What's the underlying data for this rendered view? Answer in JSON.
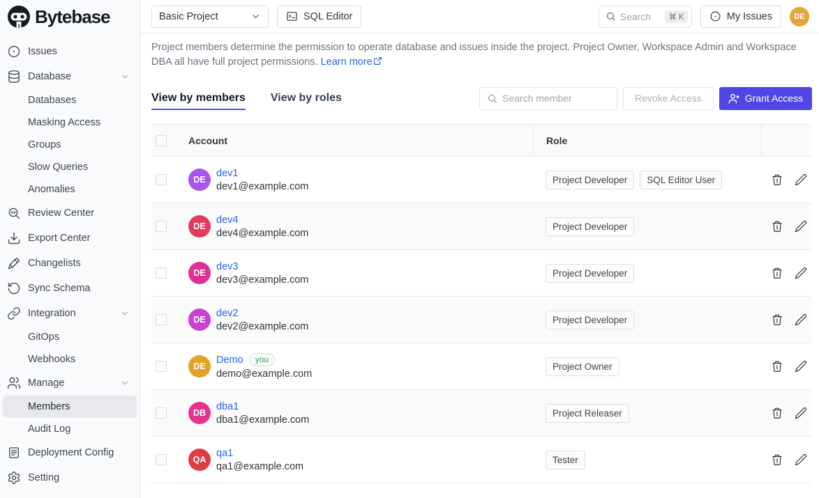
{
  "colors": {
    "accent": "#4F46E5",
    "link": "#2563EB",
    "topbar_avatar": "#E6A53C"
  },
  "sidebar": {
    "brand": "Bytebase",
    "items": [
      {
        "label": "Issues",
        "icon": "issues-icon",
        "type": "item"
      },
      {
        "label": "Database",
        "icon": "database-icon",
        "type": "item",
        "chevron": true
      },
      {
        "label": "Databases",
        "type": "subitem"
      },
      {
        "label": "Masking Access",
        "type": "subitem"
      },
      {
        "label": "Groups",
        "type": "subitem"
      },
      {
        "label": "Slow Queries",
        "type": "subitem"
      },
      {
        "label": "Anomalies",
        "type": "subitem"
      },
      {
        "label": "Review Center",
        "icon": "review-center-icon",
        "type": "item"
      },
      {
        "label": "Export Center",
        "icon": "export-center-icon",
        "type": "item"
      },
      {
        "label": "Changelists",
        "icon": "changelists-icon",
        "type": "item"
      },
      {
        "label": "Sync Schema",
        "icon": "sync-schema-icon",
        "type": "item"
      },
      {
        "label": "Integration",
        "icon": "integration-icon",
        "type": "item",
        "chevron": true
      },
      {
        "label": "GitOps",
        "type": "subitem"
      },
      {
        "label": "Webhooks",
        "type": "subitem"
      },
      {
        "label": "Manage",
        "icon": "manage-icon",
        "type": "item",
        "chevron": true
      },
      {
        "label": "Members",
        "type": "subitem",
        "active": true
      },
      {
        "label": "Audit Log",
        "type": "subitem"
      },
      {
        "label": "Deployment Config",
        "icon": "deployment-config-icon",
        "type": "item"
      },
      {
        "label": "Setting",
        "icon": "setting-icon",
        "type": "item"
      }
    ]
  },
  "topbar": {
    "project_select": "Basic Project",
    "sql_editor_label": "SQL Editor",
    "search_placeholder": "Search",
    "search_kbd": "⌘ K",
    "my_issues_label": "My Issues",
    "avatar_initials": "DE"
  },
  "main": {
    "description": "Project members determine the permission to operate database and issues inside the project. Project Owner, Workspace Admin and Workspace DBA all have full project permissions.",
    "learn_more": "Learn more",
    "tabs": [
      {
        "label": "View by members",
        "active": true
      },
      {
        "label": "View by roles",
        "active": false
      }
    ],
    "member_search_placeholder": "Search member",
    "revoke_access_label": "Revoke Access",
    "grant_access_label": "Grant Access",
    "table": {
      "columns": {
        "account": "Account",
        "role": "Role"
      },
      "rows": [
        {
          "name": "dev1",
          "email": "dev1@example.com",
          "initials": "DE",
          "avatar_color": "#A855EB",
          "roles": [
            "Project Developer",
            "SQL Editor User"
          ]
        },
        {
          "name": "dev4",
          "email": "dev4@example.com",
          "initials": "DE",
          "avatar_color": "#E63A5C",
          "roles": [
            "Project Developer"
          ]
        },
        {
          "name": "dev3",
          "email": "dev3@example.com",
          "initials": "DE",
          "avatar_color": "#E13095",
          "roles": [
            "Project Developer"
          ]
        },
        {
          "name": "dev2",
          "email": "dev2@example.com",
          "initials": "DE",
          "avatar_color": "#C941D6",
          "roles": [
            "Project Developer"
          ]
        },
        {
          "name": "Demo",
          "email": "demo@example.com",
          "initials": "DE",
          "avatar_color": "#E0A325",
          "badge": "you",
          "roles": [
            "Project Owner"
          ]
        },
        {
          "name": "dba1",
          "email": "dba1@example.com",
          "initials": "DB",
          "avatar_color": "#E5318F",
          "roles": [
            "Project Releaser"
          ]
        },
        {
          "name": "qa1",
          "email": "qa1@example.com",
          "initials": "QA",
          "avatar_color": "#E03D42",
          "roles": [
            "Tester"
          ]
        }
      ]
    }
  }
}
